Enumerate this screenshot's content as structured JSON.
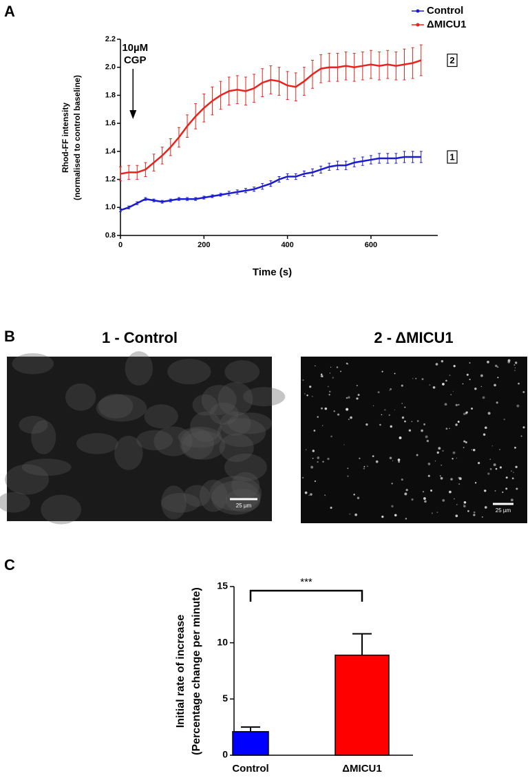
{
  "panel_labels": [
    "A",
    "B",
    "C"
  ],
  "images": [
    {
      "title": "1 - Control",
      "scale_bar": "25 µm"
    },
    {
      "title": "2 - ΔMICU1",
      "scale_bar": "25 µm"
    }
  ],
  "chart_data": [
    {
      "type": "line",
      "xlabel": "Time (s)",
      "ylabel": [
        "Rhod-FF intensity",
        "(normalised to control baseline)"
      ],
      "annotation": [
        "10µM",
        "CGP"
      ],
      "annotation_x": 35,
      "legend": "top-right",
      "x": [
        0,
        20,
        40,
        60,
        80,
        100,
        120,
        140,
        160,
        180,
        200,
        220,
        240,
        260,
        280,
        300,
        320,
        340,
        360,
        380,
        400,
        420,
        440,
        460,
        480,
        500,
        520,
        540,
        560,
        580,
        600,
        620,
        640,
        660,
        680,
        700,
        720
      ],
      "series": [
        {
          "name": "Control",
          "tag": "1",
          "color": "#1a1ad0",
          "values": [
            0.98,
            1.0,
            1.03,
            1.06,
            1.05,
            1.04,
            1.05,
            1.06,
            1.06,
            1.06,
            1.07,
            1.08,
            1.09,
            1.1,
            1.11,
            1.12,
            1.13,
            1.15,
            1.17,
            1.2,
            1.22,
            1.22,
            1.24,
            1.25,
            1.27,
            1.29,
            1.3,
            1.3,
            1.32,
            1.33,
            1.34,
            1.35,
            1.35,
            1.35,
            1.36,
            1.36,
            1.36
          ],
          "errors": [
            0.01,
            0.01,
            0.01,
            0.01,
            0.01,
            0.01,
            0.01,
            0.01,
            0.01,
            0.01,
            0.01,
            0.01,
            0.01,
            0.015,
            0.015,
            0.015,
            0.015,
            0.02,
            0.02,
            0.02,
            0.02,
            0.02,
            0.02,
            0.025,
            0.025,
            0.025,
            0.03,
            0.03,
            0.03,
            0.03,
            0.03,
            0.035,
            0.035,
            0.035,
            0.04,
            0.04,
            0.04
          ]
        },
        {
          "name": "ΔMICU1",
          "tag": "2",
          "color": "#e8231c",
          "values": [
            1.24,
            1.25,
            1.25,
            1.27,
            1.32,
            1.37,
            1.43,
            1.5,
            1.58,
            1.65,
            1.71,
            1.76,
            1.8,
            1.83,
            1.84,
            1.83,
            1.85,
            1.89,
            1.91,
            1.9,
            1.87,
            1.86,
            1.9,
            1.95,
            1.99,
            2.0,
            2.0,
            2.01,
            2.0,
            2.01,
            2.02,
            2.01,
            2.02,
            2.01,
            2.02,
            2.03,
            2.05
          ],
          "errors": [
            0.05,
            0.05,
            0.05,
            0.05,
            0.06,
            0.06,
            0.06,
            0.07,
            0.08,
            0.09,
            0.1,
            0.1,
            0.1,
            0.1,
            0.1,
            0.1,
            0.1,
            0.1,
            0.1,
            0.1,
            0.1,
            0.1,
            0.1,
            0.1,
            0.1,
            0.1,
            0.1,
            0.1,
            0.1,
            0.1,
            0.1,
            0.1,
            0.1,
            0.1,
            0.11,
            0.11,
            0.11
          ]
        }
      ],
      "xlim": [
        0,
        760
      ],
      "xticks": [
        0,
        200,
        400,
        600
      ],
      "ylim": [
        0.8,
        2.2
      ],
      "yticks": [
        0.8,
        {
          "value": 1,
          "label": "1.0"
        },
        1.2,
        1.4,
        1.6,
        1.8,
        {
          "value": 2,
          "label": "2.0"
        },
        2.2
      ]
    },
    {
      "type": "bar",
      "ylabel": [
        "Initial rate of increase",
        "(Percentage change per minute)"
      ],
      "categories": [
        "Control",
        "ΔMICU1"
      ],
      "values": [
        2.1,
        8.9
      ],
      "errors": [
        0.4,
        1.9
      ],
      "colors": [
        "#0000ff",
        "#ff0000"
      ],
      "annotation": "***",
      "ylim": [
        0,
        15
      ],
      "yticks": [
        0,
        5,
        10,
        15
      ]
    }
  ]
}
